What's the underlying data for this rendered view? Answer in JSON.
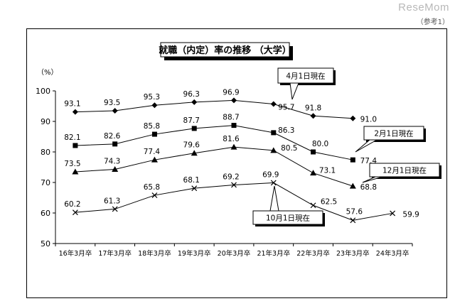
{
  "watermark": "ReseMom",
  "reference_note": "（参考1）",
  "chart_data": {
    "type": "line",
    "title": "就職（内定）率の推移 （大学）",
    "ylabel": "（%）",
    "xlabel": "",
    "ylim": [
      50,
      100
    ],
    "yticks": [
      50,
      60,
      70,
      80,
      90,
      100
    ],
    "categories": [
      "16年3月卒",
      "17年3月卒",
      "18年3月卒",
      "19年3月卒",
      "20年3月卒",
      "21年3月卒",
      "22年3月卒",
      "23年3月卒",
      "24年3月卒"
    ],
    "grid": false,
    "legend": "callouts",
    "series": [
      {
        "name": "4月1日現在",
        "marker": "diamond",
        "values": [
          93.1,
          93.5,
          95.3,
          96.3,
          96.9,
          95.7,
          91.8,
          91.0,
          null
        ],
        "labels": [
          "93.1",
          "93.5",
          "95.3",
          "96.3",
          "96.9",
          "95.7",
          "91.8",
          "91.0",
          null
        ]
      },
      {
        "name": "2月1日現在",
        "marker": "square",
        "values": [
          82.1,
          82.6,
          85.8,
          87.7,
          88.7,
          86.3,
          80.0,
          77.4,
          null
        ],
        "labels": [
          "82.1",
          "82.6",
          "85.8",
          "87.7",
          "88.7",
          "86.3",
          "80.0",
          "77.4",
          null
        ]
      },
      {
        "name": "12月1日現在",
        "marker": "triangle",
        "values": [
          73.5,
          74.3,
          77.4,
          79.6,
          81.6,
          80.5,
          73.1,
          68.8,
          null
        ],
        "labels": [
          "73.5",
          "74.3",
          "77.4",
          "79.6",
          "81.6",
          "80.5",
          "73.1",
          "68.8",
          null
        ]
      },
      {
        "name": "10月1日現在",
        "marker": "x",
        "values": [
          60.2,
          61.3,
          65.8,
          68.1,
          69.2,
          69.9,
          62.5,
          57.6,
          59.9
        ],
        "labels": [
          "60.2",
          "61.3",
          "65.8",
          "68.1",
          "69.2",
          "69.9",
          "62.5",
          "57.6",
          "59.9"
        ]
      }
    ]
  }
}
